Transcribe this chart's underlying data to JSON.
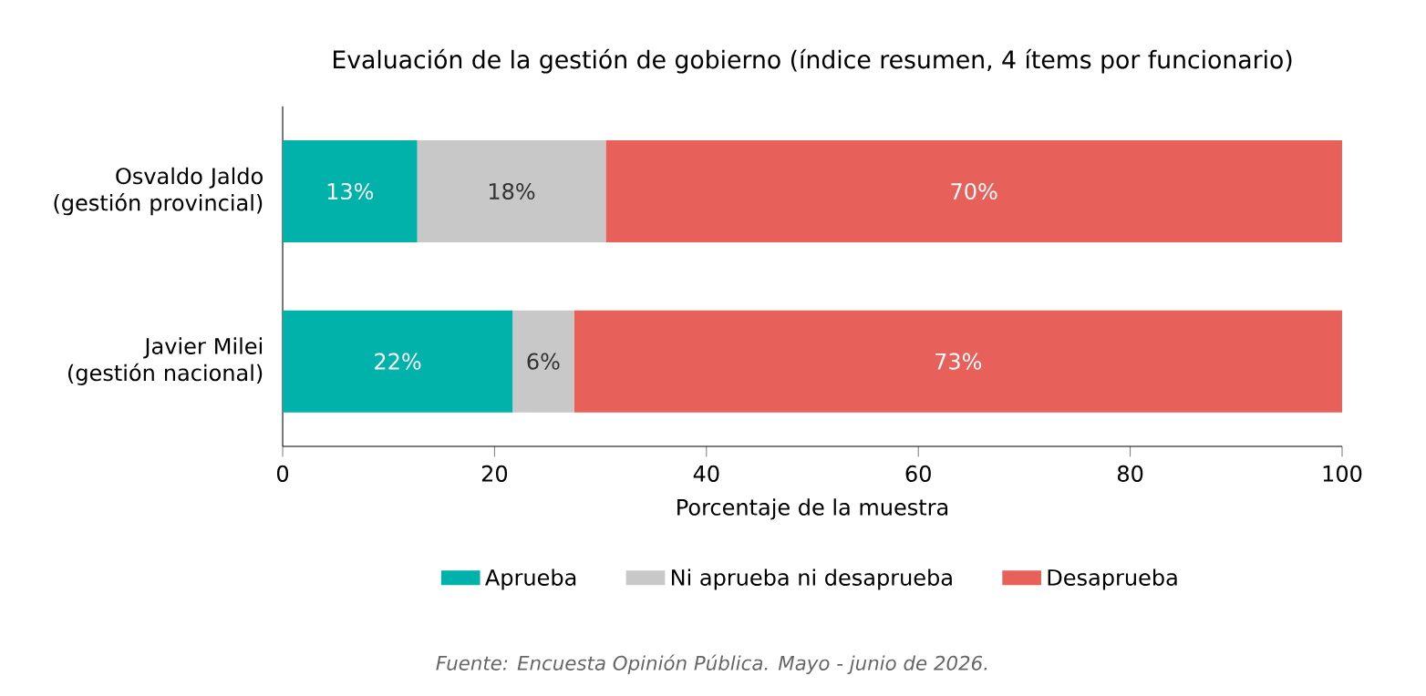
{
  "chart_data": {
    "type": "bar",
    "orientation": "horizontal",
    "stacked": true,
    "title": "Evaluación de la gestión de gobierno (índice resumen, 4 ítems por funcionario)",
    "xlabel": "Porcentaje de la muestra",
    "categories": [
      "Osvaldo Jaldo (gestión provincial)",
      "Javier Milei (gestión nacional)"
    ],
    "series": [
      {
        "name": "Aprueba",
        "color": "#00b2a9",
        "values": [
          12.7,
          21.7
        ],
        "value_labels": [
          "13%",
          "22%"
        ]
      },
      {
        "name": "Ni aprueba ni desaprueba",
        "color": "#c8c8c8",
        "values": [
          17.8,
          5.8
        ],
        "value_labels": [
          "18%",
          "6%"
        ]
      },
      {
        "name": "Desaprueba",
        "color": "#e8605a",
        "values": [
          69.5,
          72.5
        ],
        "value_labels": [
          "70%",
          "73%"
        ]
      }
    ],
    "xlim": [
      0,
      100
    ],
    "xticks": [
      0,
      20,
      40,
      60,
      80,
      100
    ],
    "legend": "bottom",
    "grid": false,
    "annotations": [
      "Fuente: Encuesta Opinión Pública. Mayo - junio de 2026."
    ]
  }
}
